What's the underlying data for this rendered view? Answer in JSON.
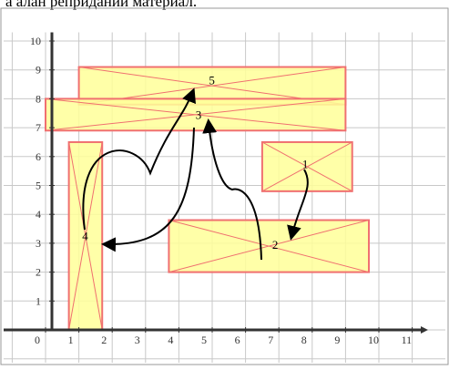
{
  "caption": "а алан реприданий материал.",
  "grid": {
    "x_ticks": [
      "0",
      "1",
      "2",
      "3",
      "4",
      "5",
      "6",
      "7",
      "8",
      "9",
      "10",
      "11"
    ],
    "y_ticks": [
      "1",
      "2",
      "3",
      "4",
      "5",
      "6",
      "7",
      "8",
      "9",
      "10"
    ]
  },
  "rectangles": [
    {
      "id": "r1",
      "x0": 1.0,
      "x1": 9.0,
      "y0": 7.8,
      "y1": 9.1
    },
    {
      "id": "r2",
      "x0": 0.0,
      "x1": 9.0,
      "y0": 6.9,
      "y1": 8.0
    },
    {
      "id": "r3",
      "x0": 6.5,
      "x1": 9.2,
      "y0": 4.8,
      "y1": 6.5
    },
    {
      "id": "r4",
      "x0": 0.7,
      "x1": 1.7,
      "y0": 0.0,
      "y1": 6.5
    },
    {
      "id": "r5",
      "x0": 3.7,
      "x1": 9.7,
      "y0": 2.0,
      "y1": 3.8
    }
  ],
  "labels": [
    {
      "text": "5",
      "x": 4.9,
      "y": 8.5
    },
    {
      "text": "3",
      "x": 4.5,
      "y": 7.3
    },
    {
      "text": "1",
      "x": 7.7,
      "y": 5.6
    },
    {
      "text": "4",
      "x": 1.1,
      "y": 3.1
    },
    {
      "text": "2",
      "x": 6.8,
      "y": 2.8
    }
  ],
  "colors": {
    "fill": "#ffff99",
    "stroke": "#f07070",
    "grid": "#c8c8c8",
    "axis": "#333333",
    "arrow": "#000000"
  }
}
